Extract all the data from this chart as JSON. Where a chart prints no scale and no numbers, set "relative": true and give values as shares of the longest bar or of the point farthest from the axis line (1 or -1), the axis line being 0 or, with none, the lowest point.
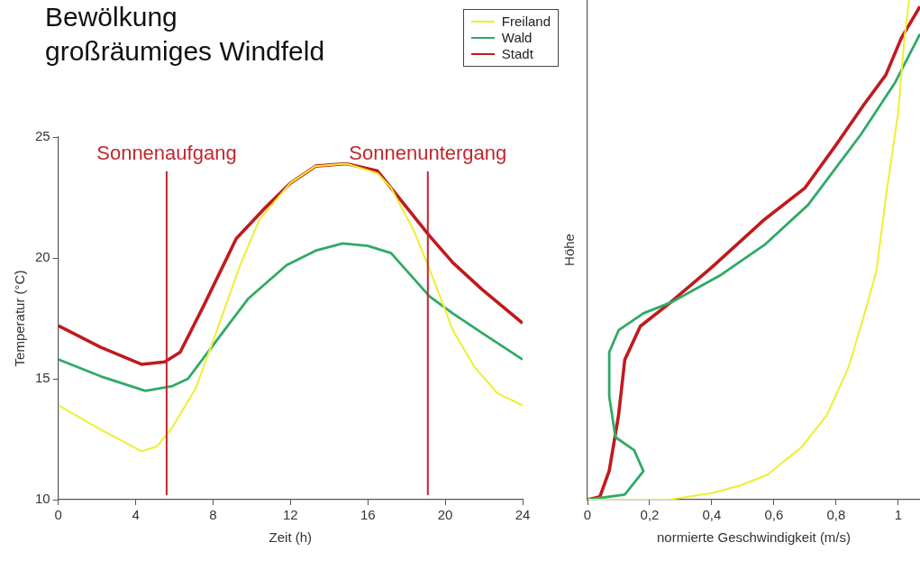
{
  "chart_data": [
    {
      "type": "line",
      "title": "Bewölkung",
      "subtitle": "großräumiges Windfeld",
      "xlabel": "Zeit (h)",
      "ylabel": "Temperatur (°C)",
      "xlim": [
        0,
        24
      ],
      "xticks": [
        0,
        4,
        8,
        12,
        16,
        20,
        24
      ],
      "ylim": [
        10,
        25
      ],
      "yticks": [
        10,
        15,
        20,
        25
      ],
      "grid": false,
      "legend": "top right",
      "marker": "none",
      "series": [
        {
          "name": "Freiland",
          "color": "#eeee33",
          "x": [
            0,
            2.2,
            4.3,
            5.1,
            5.9,
            7.1,
            8.2,
            9.4,
            10.4,
            12,
            13.3,
            14.9,
            16.5,
            17.2,
            18.4,
            19.4,
            20.4,
            21.5,
            22.7,
            24
          ],
          "values": [
            13.9,
            12.9,
            12,
            12.2,
            13,
            14.6,
            17,
            19.7,
            21.6,
            23.1,
            23.8,
            23.9,
            23.5,
            22.9,
            21.1,
            19.1,
            17,
            15.5,
            14.4,
            13.9
          ]
        },
        {
          "name": "Wald",
          "color": "#2faa66",
          "x": [
            0,
            2.2,
            4.5,
            5.9,
            6.7,
            8.2,
            9.8,
            11.8,
            13.3,
            14.7,
            16,
            17.2,
            19.2,
            20.4,
            21.9,
            24
          ],
          "values": [
            15.8,
            15.1,
            14.5,
            14.7,
            15,
            16.6,
            18.3,
            19.7,
            20.3,
            20.6,
            20.5,
            20.2,
            18.4,
            17.7,
            16.9,
            15.8
          ]
        },
        {
          "name": "Stadt",
          "color": "#c01a1e",
          "x": [
            0,
            2.2,
            4.3,
            5.5,
            6.3,
            7.5,
            9.2,
            10.6,
            12,
            13.3,
            14.9,
            16.5,
            17.2,
            19.2,
            20.4,
            21.9,
            24
          ],
          "values": [
            17.2,
            16.3,
            15.6,
            15.7,
            16.1,
            18,
            20.8,
            22,
            23.1,
            23.8,
            23.9,
            23.6,
            22.9,
            20.9,
            19.8,
            18.7,
            17.3
          ]
        }
      ],
      "ref_lines": [
        {
          "axis": "x",
          "value": 5.6,
          "label": "Sonnenaufgang",
          "color": "#c0272d"
        },
        {
          "axis": "x",
          "value": 19.1,
          "label": "Sonnenuntergang",
          "color": "#c0272d"
        }
      ]
    },
    {
      "type": "line",
      "xlabel": "normierte Geschwindigkeit (m/s)",
      "ylabel": "Höhe",
      "relative": true,
      "xlim": [
        0,
        1.07
      ],
      "xticks": [
        0,
        {
          "value": 0.2,
          "label": "0,2"
        },
        {
          "value": 0.4,
          "label": "0,4"
        },
        {
          "value": 0.6,
          "label": "0,6"
        },
        {
          "value": 0.8,
          "label": "0,8"
        },
        1
      ],
      "grid": false,
      "marker": "none",
      "series": [
        {
          "color": "#eeee33",
          "x": [
            0,
            0.26,
            0.4,
            0.49,
            0.58,
            0.69,
            0.77,
            0.84,
            0.89,
            0.93,
            0.96,
            1,
            1.02,
            1.035
          ],
          "values": [
            0,
            0,
            0.013,
            0.028,
            0.05,
            0.106,
            0.169,
            0.265,
            0.369,
            0.458,
            0.606,
            0.776,
            0.924,
            1
          ]
        },
        {
          "color": "#2faa66",
          "x": [
            0,
            0.12,
            0.18,
            0.15,
            0.09,
            0.07,
            0.07,
            0.1,
            0.18,
            0.27,
            0.43,
            0.57,
            0.71,
            0.88,
            0.99,
            1.07
          ],
          "values": [
            0,
            0.01,
            0.057,
            0.099,
            0.125,
            0.206,
            0.295,
            0.339,
            0.373,
            0.395,
            0.45,
            0.51,
            0.59,
            0.731,
            0.835,
            0.932
          ]
        },
        {
          "color": "#c01a1e",
          "x": [
            0,
            0.04,
            0.07,
            0.1,
            0.12,
            0.17,
            0.26,
            0.4,
            0.57,
            0.7,
            0.8,
            0.89,
            0.96,
            1.01,
            1.07
          ],
          "values": [
            0,
            0.006,
            0.058,
            0.169,
            0.28,
            0.347,
            0.391,
            0.465,
            0.561,
            0.624,
            0.71,
            0.791,
            0.85,
            0.924,
            0.987
          ]
        }
      ]
    }
  ]
}
